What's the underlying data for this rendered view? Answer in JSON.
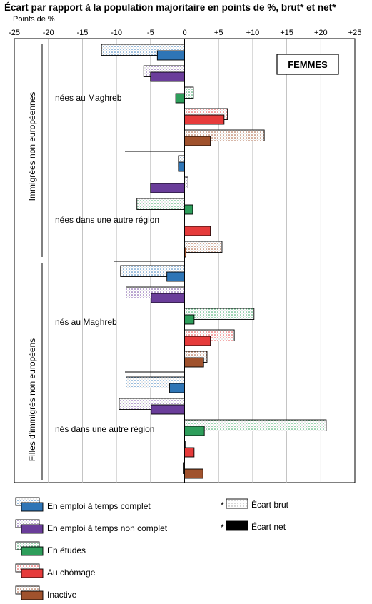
{
  "title": "Écart par rapport à la population majoritaire en points de %, brut* et net*",
  "unit_label": "Points de %",
  "colors": {
    "temps_complet": "#2e75b6",
    "temps_non_complet": "#6a3d9a",
    "etudes": "#2e9e5b",
    "chomage": "#e63b3b",
    "inactive": "#a0522d",
    "net": "#000000"
  },
  "chart_data": {
    "type": "bar",
    "orientation": "horizontal",
    "xlim": [
      -25,
      25
    ],
    "x_ticks": [
      "-25",
      "-20",
      "-15",
      "-10",
      "-5",
      "0",
      "+5",
      "+10",
      "+15",
      "+20",
      "+25"
    ],
    "grid": true,
    "badge": "FEMMES",
    "groups": [
      {
        "label": "Immigrées non européennes",
        "subgroups": [
          {
            "label": "nées au Maghreb",
            "bars": [
              {
                "category": "En emploi à temps complet",
                "brut": -12.2,
                "net": -4.0
              },
              {
                "category": "En emploi à temps non complet",
                "brut": -6.0,
                "net": -5.0
              },
              {
                "category": "En études",
                "brut": 1.3,
                "net": -1.3
              },
              {
                "category": "Au chômage",
                "brut": 6.3,
                "net": 5.8
              },
              {
                "category": "Inactive",
                "brut": 11.7,
                "net": 3.8
              }
            ]
          },
          {
            "label": "nées dans une autre région",
            "bars": [
              {
                "category": "En emploi à temps complet",
                "brut": -0.9,
                "net": -0.9
              },
              {
                "category": "En emploi à temps non complet",
                "brut": 0.5,
                "net": -5.0
              },
              {
                "category": "En études",
                "brut": -7.0,
                "net": 1.2
              },
              {
                "category": "Au chômage",
                "brut": -0.1,
                "net": 3.8
              },
              {
                "category": "Inactive",
                "brut": 5.5,
                "net": 0.2
              }
            ]
          }
        ]
      },
      {
        "label": "Filles d'immigrés non européens",
        "subgroups": [
          {
            "label": "nés au Maghreb",
            "bars": [
              {
                "category": "En emploi à temps complet",
                "brut": -9.4,
                "net": -2.6
              },
              {
                "category": "En emploi à temps non complet",
                "brut": -8.6,
                "net": -4.9
              },
              {
                "category": "En études",
                "brut": 10.2,
                "net": 1.4
              },
              {
                "category": "Au chômage",
                "brut": 7.3,
                "net": 3.8
              },
              {
                "category": "Inactive",
                "brut": 3.3,
                "net": 2.8
              }
            ]
          },
          {
            "label": "nés dans une autre région",
            "bars": [
              {
                "category": "En emploi à temps complet",
                "brut": -8.6,
                "net": -2.2
              },
              {
                "category": "En emploi à temps non complet",
                "brut": -9.6,
                "net": -4.9
              },
              {
                "category": "En études",
                "brut": 20.8,
                "net": 2.9
              },
              {
                "category": "Au chômage",
                "brut": 0.0,
                "net": 1.4
              },
              {
                "category": "Inactive",
                "brut": -0.2,
                "net": 2.7
              }
            ]
          }
        ]
      }
    ],
    "legend": {
      "categories": [
        "En emploi à temps complet",
        "En emploi à temps non complet",
        "En études",
        "Au chômage",
        "Inactive"
      ],
      "marker": "*",
      "ecart_brut": "Écart brut",
      "ecart_net": "Écart net"
    }
  }
}
